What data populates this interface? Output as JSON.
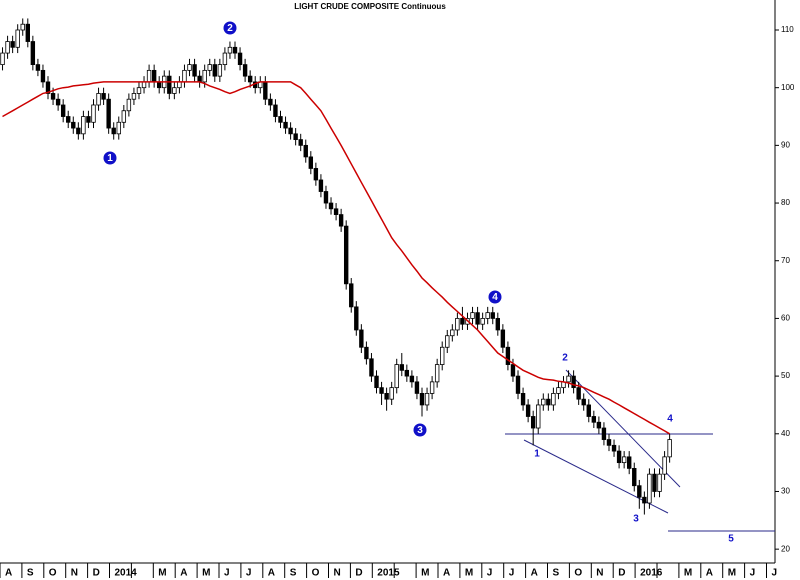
{
  "chart_data": {
    "type": "candlestick",
    "title": "LIGHT CRUDE COMPOSITE Continuous",
    "months": [
      "A",
      "S",
      "O",
      "N",
      "D",
      "2014",
      null,
      "M",
      "A",
      "M",
      "J",
      "J",
      "A",
      "S",
      "O",
      "N",
      "D",
      "2015",
      null,
      "M",
      "A",
      "M",
      "J",
      "J",
      "A",
      "S",
      "O",
      "N",
      "D",
      "2016",
      null,
      "M",
      "A",
      "M",
      "J",
      "J"
    ],
    "ylim": [
      17.6,
      115.2
    ],
    "yticks": [
      20,
      30,
      40,
      50,
      60,
      70,
      80,
      90,
      100,
      110
    ],
    "up_color": "#ffffff",
    "down_color": "#000000",
    "open": [
      104,
      106,
      108,
      107,
      110,
      111,
      108,
      104,
      103,
      101,
      99,
      98,
      97,
      95,
      94,
      93,
      92,
      95,
      94,
      97,
      99,
      98,
      93,
      92,
      94,
      96,
      98,
      99,
      100,
      101,
      103,
      101,
      100,
      102,
      99,
      100,
      101,
      103,
      104,
      102,
      101,
      103,
      104,
      102,
      104,
      106,
      107,
      106,
      104,
      102,
      101,
      100,
      101,
      98,
      97,
      95,
      94,
      93,
      92,
      91,
      90,
      88,
      86,
      84,
      82,
      80,
      79,
      78,
      76,
      66,
      62,
      58,
      55,
      53,
      50,
      48,
      47,
      46,
      48,
      52,
      51,
      50,
      49,
      47,
      45,
      47,
      49,
      52,
      55,
      57,
      58,
      60,
      59,
      60,
      61,
      59,
      60,
      61,
      60,
      58,
      55,
      52,
      50,
      47,
      45,
      43,
      41,
      45,
      46,
      45,
      47,
      48,
      49,
      50,
      48,
      46,
      45,
      43,
      42,
      41,
      39,
      38,
      37,
      35,
      36,
      34,
      31,
      29,
      28,
      33,
      30,
      33,
      36
    ],
    "high": [
      107,
      109,
      109,
      111,
      112,
      112,
      109,
      105,
      104,
      102,
      100,
      99,
      98,
      96,
      95,
      94,
      96,
      96,
      98,
      100,
      100,
      99,
      94,
      95,
      97,
      99,
      100,
      101,
      102,
      104,
      104,
      102,
      103,
      103,
      101,
      102,
      104,
      105,
      105,
      103,
      104,
      105,
      105,
      105,
      107,
      108,
      108,
      107,
      105,
      103,
      102,
      102,
      102,
      99,
      98,
      96,
      95,
      94,
      93,
      92,
      91,
      89,
      87,
      85,
      83,
      81,
      80,
      79,
      77,
      67,
      63,
      59,
      56,
      54,
      51,
      49,
      48,
      49,
      53,
      54,
      52,
      51,
      50,
      48,
      48,
      50,
      53,
      56,
      58,
      59,
      61,
      62,
      61,
      62,
      62,
      61,
      62,
      62,
      61,
      59,
      56,
      53,
      51,
      48,
      46,
      44,
      46,
      47,
      47,
      48,
      49,
      50,
      51,
      51,
      49,
      47,
      46,
      44,
      43,
      42,
      40,
      39,
      38,
      37,
      37,
      35,
      32,
      30,
      34,
      34,
      34,
      37,
      40
    ],
    "low": [
      103,
      105,
      106,
      106,
      109,
      107,
      103,
      102,
      100,
      98,
      97,
      96,
      94,
      93,
      92,
      91,
      91,
      93,
      93,
      96,
      97,
      92,
      91,
      91,
      93,
      95,
      97,
      98,
      99,
      100,
      100,
      99,
      99,
      98,
      98,
      99,
      100,
      102,
      101,
      100,
      100,
      102,
      101,
      101,
      103,
      105,
      105,
      103,
      101,
      100,
      99,
      99,
      97,
      96,
      94,
      93,
      92,
      91,
      90,
      89,
      87,
      85,
      83,
      81,
      79,
      78,
      77,
      75,
      65,
      61,
      57,
      54,
      52,
      49,
      47,
      45,
      44,
      45,
      47,
      50,
      49,
      48,
      46,
      43,
      44,
      46,
      48,
      51,
      54,
      56,
      57,
      58,
      58,
      59,
      58,
      58,
      59,
      59,
      57,
      54,
      51,
      49,
      46,
      44,
      42,
      38,
      40,
      44,
      44,
      44,
      46,
      47,
      48,
      47,
      45,
      44,
      42,
      41,
      40,
      38,
      37,
      36,
      34,
      34,
      33,
      30,
      27,
      26,
      27,
      29,
      29,
      32,
      35
    ],
    "close": [
      106,
      108,
      107,
      110,
      111,
      108,
      104,
      103,
      101,
      99,
      98,
      97,
      95,
      94,
      93,
      92,
      95,
      94,
      97,
      99,
      98,
      93,
      92,
      94,
      96,
      98,
      99,
      100,
      101,
      103,
      101,
      100,
      102,
      99,
      100,
      101,
      103,
      104,
      102,
      101,
      103,
      104,
      102,
      104,
      106,
      107,
      106,
      104,
      102,
      101,
      100,
      101,
      98,
      97,
      95,
      94,
      93,
      92,
      91,
      90,
      88,
      86,
      84,
      82,
      80,
      79,
      78,
      76,
      66,
      62,
      58,
      55,
      53,
      50,
      48,
      47,
      46,
      48,
      52,
      51,
      50,
      49,
      47,
      45,
      47,
      49,
      52,
      55,
      57,
      58,
      60,
      59,
      60,
      61,
      59,
      60,
      61,
      60,
      58,
      55,
      52,
      50,
      47,
      45,
      43,
      41,
      45,
      46,
      45,
      47,
      48,
      49,
      50,
      48,
      46,
      45,
      43,
      42,
      41,
      39,
      38,
      37,
      35,
      36,
      34,
      31,
      29,
      28,
      33,
      30,
      33,
      36,
      39
    ],
    "moving_average": {
      "color": "#cc0000",
      "values": [
        95,
        95.5,
        96,
        96.5,
        97,
        97.5,
        98,
        98.5,
        99,
        99.2,
        99.5,
        99.8,
        100,
        100.1,
        100.3,
        100.4,
        100.5,
        100.6,
        100.8,
        100.9,
        101,
        101,
        101,
        101,
        101,
        101,
        101,
        101,
        101,
        101,
        101,
        101,
        101,
        101,
        101,
        101,
        101,
        101,
        101,
        101,
        100.7,
        100.3,
        100,
        99.7,
        99.3,
        99,
        99.3,
        99.7,
        100,
        100.3,
        100.7,
        101,
        101,
        101,
        101,
        101,
        101,
        101,
        100.5,
        100,
        99,
        98,
        97,
        96,
        94.5,
        93,
        91.5,
        90,
        88.4,
        86.8,
        85.2,
        83.6,
        82,
        80.4,
        78.8,
        77.2,
        75.6,
        74,
        72.8,
        71.7,
        70.5,
        69.3,
        68.2,
        67,
        66.2,
        65.3,
        64.5,
        63.7,
        62.8,
        62,
        61.2,
        60.4,
        59.6,
        58.8,
        58,
        57,
        56,
        55,
        54,
        53.4,
        52.8,
        52.2,
        51.6,
        51,
        50.6,
        50.2,
        49.8,
        49.5,
        49.4,
        49.3,
        49.1,
        49,
        48.8,
        48.5,
        48.3,
        48,
        47.6,
        47.2,
        46.8,
        46.4,
        46,
        45.5,
        45,
        44.5,
        44,
        43.5,
        43,
        42.5,
        42,
        41.5,
        41,
        40.5,
        40
      ]
    },
    "annotations": [
      "1",
      "2",
      "3",
      "4",
      "2",
      "1",
      "3",
      "4",
      "5"
    ]
  }
}
